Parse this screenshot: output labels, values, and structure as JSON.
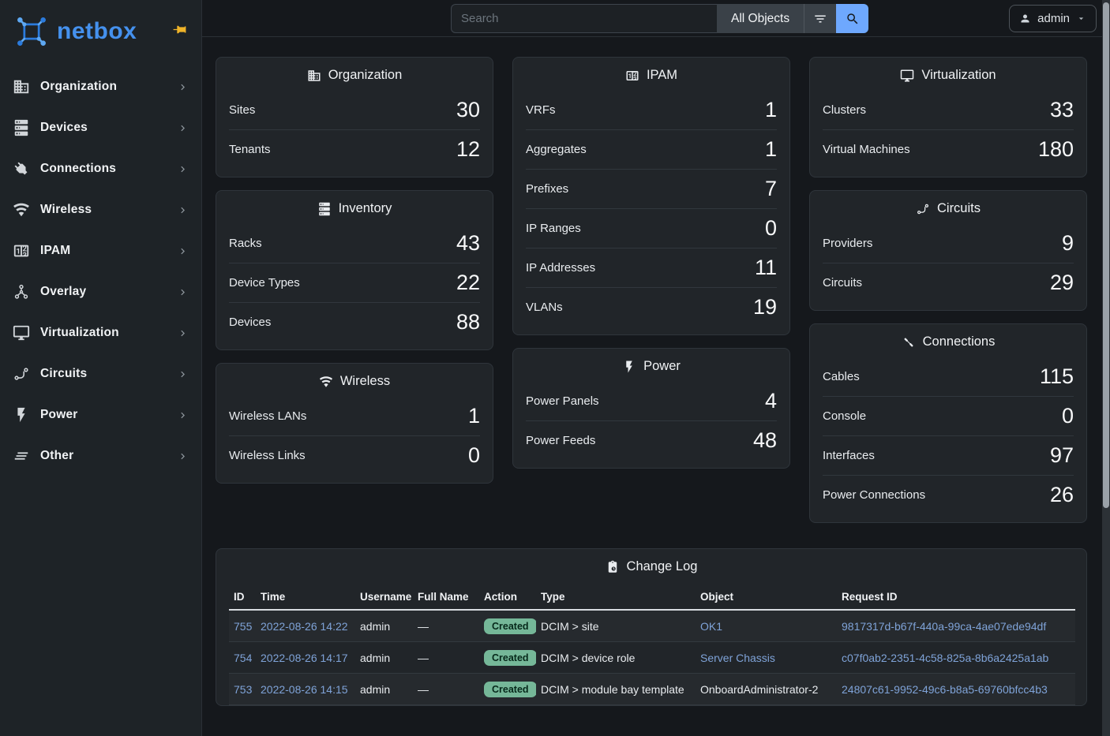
{
  "brand": {
    "name": "netbox"
  },
  "colors": {
    "accent_blue": "#6ea8fe",
    "link_blue": "#7fa3d8",
    "badge_green": "#75b798",
    "brand_blue": "#4591ee",
    "pin_yellow": "#f0b429",
    "card_bg": "#212529",
    "page_bg": "#15181c",
    "sidebar_bg": "#1e2327"
  },
  "topbar": {
    "search": {
      "placeholder": "Search",
      "value": ""
    },
    "scope_label": "All Objects",
    "filter_icon": "filter-icon",
    "search_icon": "magnify-icon",
    "user": {
      "label": "admin",
      "icon": "person-icon",
      "caret_icon": "caret-down-icon"
    }
  },
  "sidebar": {
    "logo_icon": "netbox-logo-icon",
    "pin_icon": "pin-icon",
    "items": [
      {
        "label": "Organization",
        "icon": "building-icon"
      },
      {
        "label": "Devices",
        "icon": "server-icon"
      },
      {
        "label": "Connections",
        "icon": "plug-icon"
      },
      {
        "label": "Wireless",
        "icon": "wifi-icon"
      },
      {
        "label": "IPAM",
        "icon": "counter-icon"
      },
      {
        "label": "Overlay",
        "icon": "graph-icon"
      },
      {
        "label": "Virtualization",
        "icon": "monitor-icon"
      },
      {
        "label": "Circuits",
        "icon": "transit-icon"
      },
      {
        "label": "Power",
        "icon": "flash-icon"
      },
      {
        "label": "Other",
        "icon": "lines-icon"
      }
    ]
  },
  "dashboard": {
    "columns": [
      [
        {
          "title": "Organization",
          "icon": "building-icon",
          "rows": [
            {
              "label": "Sites",
              "value": "30"
            },
            {
              "label": "Tenants",
              "value": "12"
            }
          ]
        },
        {
          "title": "Inventory",
          "icon": "server-icon",
          "rows": [
            {
              "label": "Racks",
              "value": "43"
            },
            {
              "label": "Device Types",
              "value": "22"
            },
            {
              "label": "Devices",
              "value": "88"
            }
          ]
        },
        {
          "title": "Wireless",
          "icon": "wifi-icon",
          "rows": [
            {
              "label": "Wireless LANs",
              "value": "1"
            },
            {
              "label": "Wireless Links",
              "value": "0"
            }
          ]
        }
      ],
      [
        {
          "title": "IPAM",
          "icon": "counter-icon",
          "rows": [
            {
              "label": "VRFs",
              "value": "1"
            },
            {
              "label": "Aggregates",
              "value": "1"
            },
            {
              "label": "Prefixes",
              "value": "7"
            },
            {
              "label": "IP Ranges",
              "value": "0"
            },
            {
              "label": "IP Addresses",
              "value": "11"
            },
            {
              "label": "VLANs",
              "value": "19"
            }
          ]
        },
        {
          "title": "Power",
          "icon": "flash-icon",
          "rows": [
            {
              "label": "Power Panels",
              "value": "4"
            },
            {
              "label": "Power Feeds",
              "value": "48"
            }
          ]
        }
      ],
      [
        {
          "title": "Virtualization",
          "icon": "monitor-icon",
          "rows": [
            {
              "label": "Clusters",
              "value": "33"
            },
            {
              "label": "Virtual Machines",
              "value": "180"
            }
          ]
        },
        {
          "title": "Circuits",
          "icon": "transit-icon",
          "rows": [
            {
              "label": "Providers",
              "value": "9"
            },
            {
              "label": "Circuits",
              "value": "29"
            }
          ]
        },
        {
          "title": "Connections",
          "icon": "cable-icon",
          "rows": [
            {
              "label": "Cables",
              "value": "115"
            },
            {
              "label": "Console",
              "value": "0"
            },
            {
              "label": "Interfaces",
              "value": "97"
            },
            {
              "label": "Power Connections",
              "value": "26"
            }
          ]
        }
      ]
    ]
  },
  "changelog": {
    "title": "Change Log",
    "icon": "clipboard-clock-icon",
    "columns": [
      "ID",
      "Time",
      "Username",
      "Full Name",
      "Action",
      "Type",
      "Object",
      "Request ID"
    ],
    "rows": [
      {
        "id": "755",
        "time": "2022-08-26 14:22",
        "username": "admin",
        "full_name": "—",
        "action": "Created",
        "type": "DCIM > site",
        "object": {
          "text": "OK1",
          "link": true
        },
        "request_id": "9817317d-b67f-440a-99ca-4ae07ede94df"
      },
      {
        "id": "754",
        "time": "2022-08-26 14:17",
        "username": "admin",
        "full_name": "—",
        "action": "Created",
        "type": "DCIM > device role",
        "object": {
          "text": "Server Chassis",
          "link": true
        },
        "request_id": "c07f0ab2-2351-4c58-825a-8b6a2425a1ab"
      },
      {
        "id": "753",
        "time": "2022-08-26 14:15",
        "username": "admin",
        "full_name": "—",
        "action": "Created",
        "type": "DCIM > module bay template",
        "object": {
          "text": "OnboardAdministrator-2",
          "link": false
        },
        "request_id": "24807c61-9952-49c6-b8a5-69760bfcc4b3"
      }
    ]
  }
}
